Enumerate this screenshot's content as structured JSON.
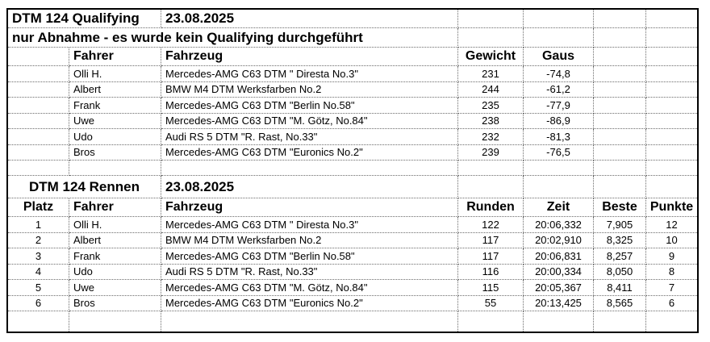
{
  "qualifying": {
    "title": "DTM 124 Qualifying",
    "date": "23.08.2025",
    "note": "nur Abnahme - es wurde kein Qualifying durchgeführt",
    "headers": {
      "fahrer": "Fahrer",
      "fahrzeug": "Fahrzeug",
      "gewicht": "Gewicht",
      "gaus": "Gaus"
    },
    "rows": [
      {
        "fahrer": "Olli H.",
        "fahrzeug": "Mercedes-AMG C63 DTM \" Diresta No.3\"",
        "gewicht": "231",
        "gaus": "-74,8"
      },
      {
        "fahrer": "Albert",
        "fahrzeug": "BMW M4 DTM Werksfarben No.2",
        "gewicht": "244",
        "gaus": "-61,2"
      },
      {
        "fahrer": "Frank",
        "fahrzeug": "Mercedes-AMG C63 DTM \"Berlin No.58\"",
        "gewicht": "235",
        "gaus": "-77,9"
      },
      {
        "fahrer": "Uwe",
        "fahrzeug": "Mercedes-AMG C63 DTM \"M. Götz, No.84\"",
        "gewicht": "238",
        "gaus": "-86,9"
      },
      {
        "fahrer": "Udo",
        "fahrzeug": "Audi RS 5 DTM \"R. Rast, No.33\"",
        "gewicht": "232",
        "gaus": "-81,3"
      },
      {
        "fahrer": "Bros",
        "fahrzeug": "Mercedes-AMG C63 DTM \"Euronics No.2\"",
        "gewicht": "239",
        "gaus": "-76,5"
      }
    ]
  },
  "race": {
    "title": "DTM 124 Rennen",
    "date": "23.08.2025",
    "headers": {
      "platz": "Platz",
      "fahrer": "Fahrer",
      "fahrzeug": "Fahrzeug",
      "runden": "Runden",
      "zeit": "Zeit",
      "beste": "Beste",
      "punkte": "Punkte"
    },
    "rows": [
      {
        "platz": "1",
        "fahrer": "Olli H.",
        "fahrzeug": "Mercedes-AMG C63 DTM \" Diresta No.3\"",
        "runden": "122",
        "zeit": "20:06,332",
        "beste": "7,905",
        "punkte": "12"
      },
      {
        "platz": "2",
        "fahrer": "Albert",
        "fahrzeug": "BMW M4 DTM Werksfarben No.2",
        "runden": "117",
        "zeit": "20:02,910",
        "beste": "8,325",
        "punkte": "10"
      },
      {
        "platz": "3",
        "fahrer": "Frank",
        "fahrzeug": "Mercedes-AMG C63 DTM \"Berlin No.58\"",
        "runden": "117",
        "zeit": "20:06,831",
        "beste": "8,257",
        "punkte": "9"
      },
      {
        "platz": "4",
        "fahrer": "Udo",
        "fahrzeug": "Audi RS 5 DTM \"R. Rast, No.33\"",
        "runden": "116",
        "zeit": "20:00,334",
        "beste": "8,050",
        "punkte": "8"
      },
      {
        "platz": "5",
        "fahrer": "Uwe",
        "fahrzeug": "Mercedes-AMG C63 DTM \"M. Götz, No.84\"",
        "runden": "115",
        "zeit": "20:05,367",
        "beste": "8,411",
        "punkte": "7"
      },
      {
        "platz": "6",
        "fahrer": "Bros",
        "fahrzeug": "Mercedes-AMG C63 DTM \"Euronics No.2\"",
        "runden": "55",
        "zeit": "20:13,425",
        "beste": "8,565",
        "punkte": "6"
      }
    ]
  }
}
